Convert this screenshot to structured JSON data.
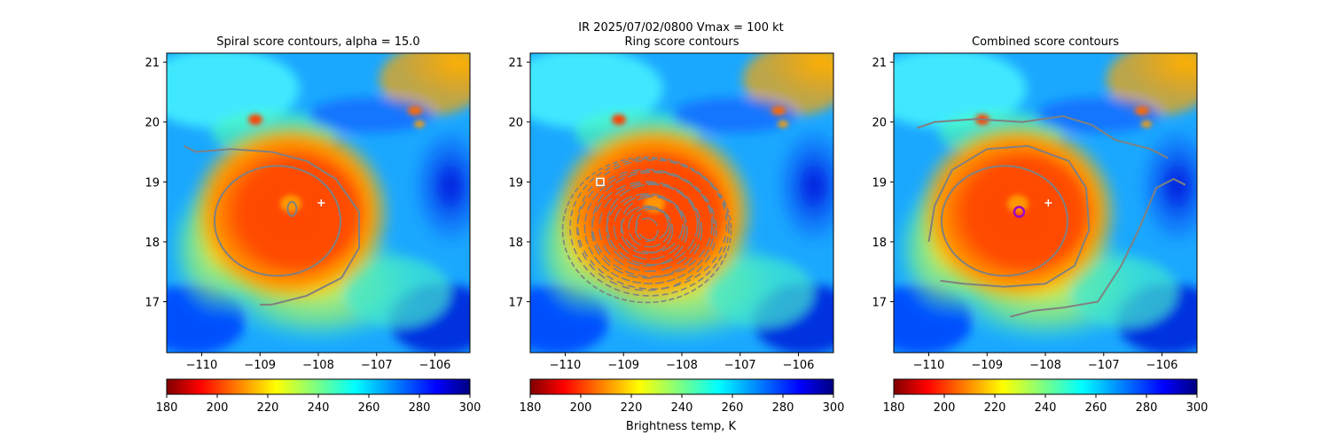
{
  "figure": {
    "suptitle_line1": "IR  2025/07/02/0800    Vmax = 100 kt",
    "colorbar_label": "Brightness temp, K"
  },
  "chart_data": [
    {
      "type": "heatmap",
      "title": "Spiral score contours, alpha = 15.0",
      "xlim": [
        -110.6,
        -105.4
      ],
      "ylim": [
        16.15,
        21.15
      ],
      "xticks": [
        -110,
        -109,
        -108,
        -107,
        -106
      ],
      "xtick_labels": [
        "−110",
        "−109",
        "−108",
        "−107",
        "−106"
      ],
      "yticks": [
        17,
        18,
        19,
        20,
        21
      ],
      "ytick_labels": [
        "17",
        "18",
        "19",
        "20",
        "21"
      ],
      "colormap": "jet_r",
      "colorbar": {
        "min": 180,
        "max": 300,
        "ticks": [
          180,
          200,
          220,
          240,
          260,
          280,
          300
        ],
        "tick_labels": [
          "180",
          "200",
          "220",
          "240",
          "260",
          "280",
          "300"
        ]
      },
      "contour_color": "#808080",
      "marker": {
        "type": "plus",
        "lon": -107.95,
        "lat": 18.65,
        "color": "#ffffff"
      }
    },
    {
      "type": "heatmap",
      "title": "Ring score contours",
      "xlim": [
        -110.6,
        -105.4
      ],
      "ylim": [
        16.15,
        21.15
      ],
      "xticks": [
        -110,
        -109,
        -108,
        -107,
        -106
      ],
      "xtick_labels": [
        "−110",
        "−109",
        "−108",
        "−107",
        "−106"
      ],
      "yticks": [
        17,
        18,
        19,
        20,
        21
      ],
      "ytick_labels": [
        "17",
        "18",
        "19",
        "20",
        "21"
      ],
      "colormap": "jet_r",
      "colorbar": {
        "min": 180,
        "max": 300,
        "ticks": [
          180,
          200,
          220,
          240,
          260,
          280,
          300
        ],
        "tick_labels": [
          "180",
          "200",
          "220",
          "240",
          "260",
          "280",
          "300"
        ]
      },
      "contour_color": "#808080",
      "marker": {
        "type": "square",
        "lon": -109.4,
        "lat": 19.0,
        "color": "#ffffff"
      }
    },
    {
      "type": "heatmap",
      "title": "Combined score contours",
      "xlim": [
        -110.6,
        -105.4
      ],
      "ylim": [
        16.15,
        21.15
      ],
      "xticks": [
        -110,
        -109,
        -108,
        -107,
        -106
      ],
      "xtick_labels": [
        "−110",
        "−109",
        "−108",
        "−107",
        "−106"
      ],
      "yticks": [
        17,
        18,
        19,
        20,
        21
      ],
      "ytick_labels": [
        "17",
        "18",
        "19",
        "20",
        "21"
      ],
      "colormap": "jet_r",
      "colorbar": {
        "min": 180,
        "max": 300,
        "ticks": [
          180,
          200,
          220,
          240,
          260,
          280,
          300
        ],
        "tick_labels": [
          "180",
          "200",
          "220",
          "240",
          "260",
          "280",
          "300"
        ]
      },
      "contour_color": "#808080",
      "marker": {
        "type": "plus",
        "lon": -107.95,
        "lat": 18.65,
        "color": "#ffffff"
      },
      "center_circle": {
        "lon": -108.45,
        "lat": 18.5,
        "color": "#9b00c8"
      }
    }
  ]
}
